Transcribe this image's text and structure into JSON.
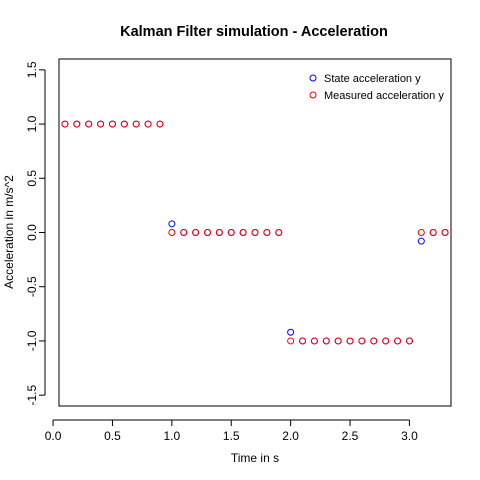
{
  "chart_data": {
    "type": "scatter",
    "title": "Kalman Filter simulation - Acceleration",
    "xlabel": "Time in s",
    "ylabel": "Acceleration in m/s^2",
    "xlim": [
      0.05,
      3.35
    ],
    "ylim": [
      -1.6,
      1.6
    ],
    "x_ticks": [
      0.0,
      0.5,
      1.0,
      1.5,
      2.0,
      2.5,
      3.0
    ],
    "x_tick_labels": [
      "0.0",
      "0.5",
      "1.0",
      "1.5",
      "2.0",
      "2.5",
      "3.0"
    ],
    "y_ticks": [
      -1.5,
      -1.0,
      -0.5,
      0.0,
      0.5,
      1.0,
      1.5
    ],
    "y_tick_labels": [
      "-1.5",
      "-1.0",
      "-0.5",
      "0.0",
      "0.5",
      "1.0",
      "1.5"
    ],
    "grid": false,
    "legend_position": "top-right",
    "x": [
      0.1,
      0.2,
      0.3,
      0.4,
      0.5,
      0.6,
      0.7,
      0.8,
      0.9,
      1.0,
      1.1,
      1.2,
      1.3,
      1.4,
      1.5,
      1.6,
      1.7,
      1.8,
      1.9,
      2.0,
      2.1,
      2.2,
      2.3,
      2.4,
      2.5,
      2.6,
      2.7,
      2.8,
      2.9,
      3.0,
      3.1,
      3.2,
      3.3
    ],
    "series": [
      {
        "name": "State acceleration y",
        "color": "#0000ff",
        "values": [
          1,
          1,
          1,
          1,
          1,
          1,
          1,
          1,
          1,
          0.08,
          0,
          0,
          0,
          0,
          0,
          0,
          0,
          0,
          0,
          -0.92,
          -1,
          -1,
          -1,
          -1,
          -1,
          -1,
          -1,
          -1,
          -1,
          -1,
          -0.08,
          0,
          0
        ]
      },
      {
        "name": "Measured acceleration y",
        "color": "#ff0000",
        "values": [
          1,
          1,
          1,
          1,
          1,
          1,
          1,
          1,
          1,
          0,
          0,
          0,
          0,
          0,
          0,
          0,
          0,
          0,
          0,
          -1,
          -1,
          -1,
          -1,
          -1,
          -1,
          -1,
          -1,
          -1,
          -1,
          -1,
          0,
          0,
          0
        ]
      }
    ]
  }
}
